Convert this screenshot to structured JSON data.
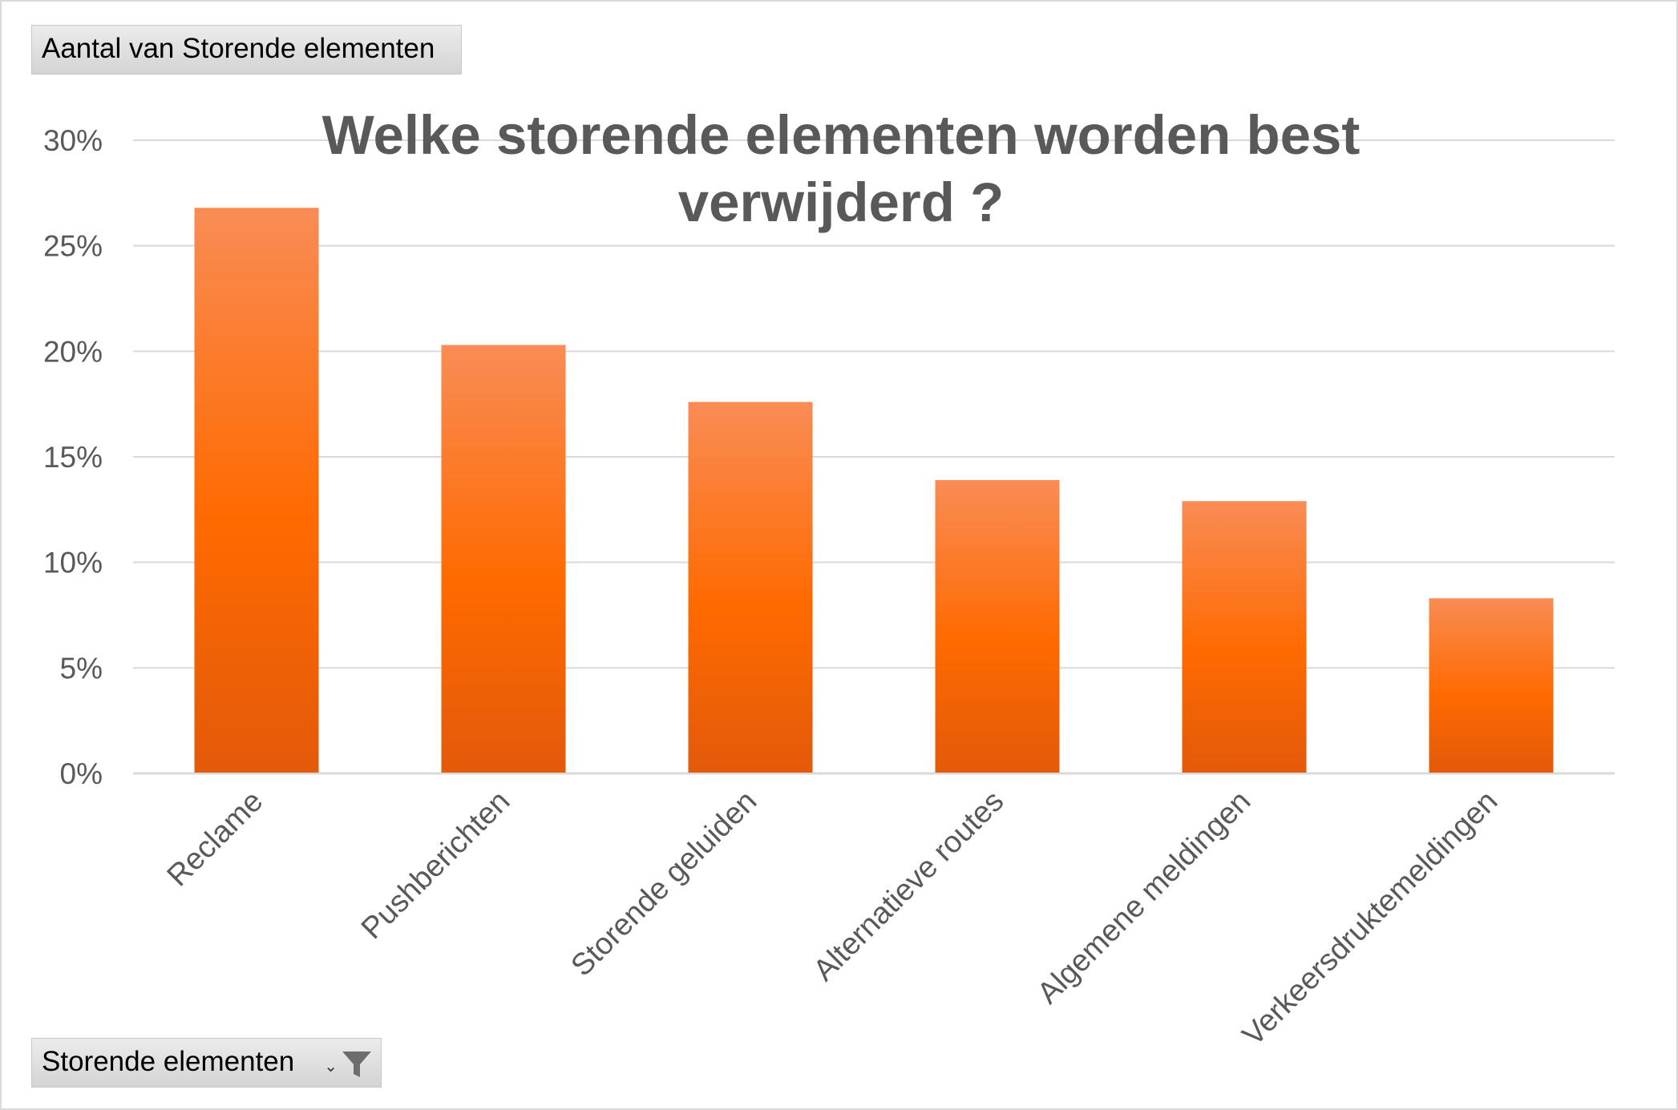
{
  "pivot": {
    "value_field_label": "Aantal van Storende elementen",
    "axis_field_label": "Storende elementen",
    "axis_field_icons": [
      "dropdown-arrow-icon",
      "filter-funnel-icon"
    ]
  },
  "colors": {
    "bar_top": "#F98C55",
    "bar_mid": "#FF6A00",
    "bar_bottom": "#E35A0A",
    "gridline": "#d9d9d9",
    "text": "#595959"
  },
  "chart_data": {
    "type": "bar",
    "title": "Welke storende elementen worden best verwijderd ?",
    "title_lines": [
      "Welke storende elementen worden best",
      "verwijderd ?"
    ],
    "categories": [
      "Reclame",
      "Pushberichten",
      "Storende geluiden",
      "Alternatieve routes",
      "Algemene meldingen",
      "Verkeersdruktemeldingen"
    ],
    "values": [
      26.8,
      20.3,
      17.6,
      13.9,
      12.9,
      8.3
    ],
    "unit": "%",
    "ylim": [
      0,
      30
    ],
    "yticks": [
      0,
      5,
      10,
      15,
      20,
      25,
      30
    ],
    "ytick_labels": [
      "0%",
      "5%",
      "10%",
      "15%",
      "20%",
      "25%",
      "30%"
    ],
    "grid": true,
    "legend": "none"
  }
}
